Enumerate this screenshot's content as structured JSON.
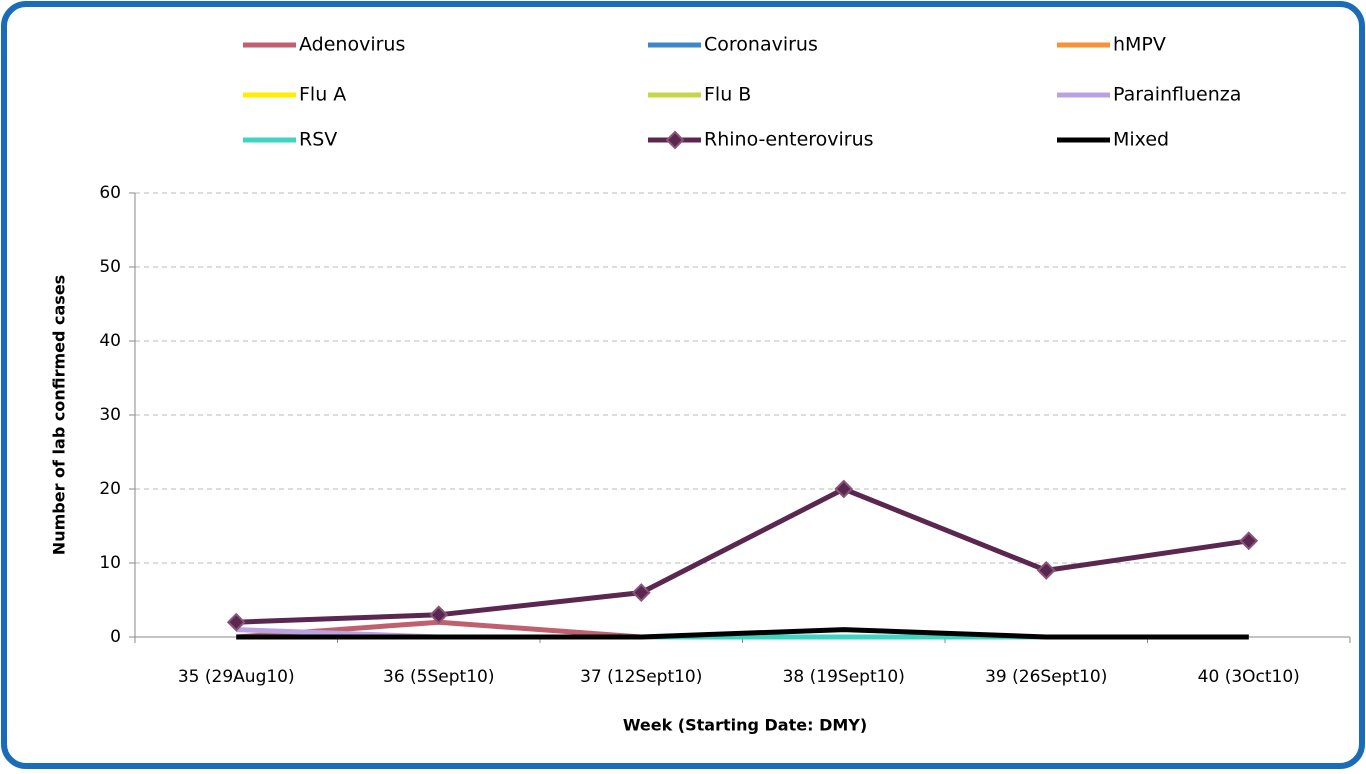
{
  "chart_data": {
    "type": "line",
    "x_label": "Week (Starting Date: DMY)",
    "y_label": "Number of lab confirmed cases",
    "categories": [
      "35 (29Aug10)",
      "36 (5Sept10)",
      "37 (12Sept10)",
      "38 (19Sept10)",
      "39 (26Sept10)",
      "40 (3Oct10)"
    ],
    "series": [
      {
        "name": "Adenovirus",
        "color": "#c0606e",
        "values": [
          0,
          2,
          0,
          0,
          0,
          0
        ]
      },
      {
        "name": "Coronavirus",
        "color": "#3f86c8",
        "values": [
          0,
          0,
          0,
          0,
          0,
          0
        ]
      },
      {
        "name": "hMPV",
        "color": "#f7923a",
        "values": [
          0,
          0,
          0,
          0,
          0,
          0
        ]
      },
      {
        "name": "Flu A",
        "color": "#ffee00",
        "values": [
          0,
          0,
          0,
          0,
          0,
          0
        ]
      },
      {
        "name": "Flu B",
        "color": "#c6d64a",
        "values": [
          0,
          0,
          0,
          0,
          0,
          0
        ]
      },
      {
        "name": "Parainfluenza",
        "color": "#b9a2e2",
        "values": [
          1,
          0,
          0,
          0,
          0,
          0
        ]
      },
      {
        "name": "RSV",
        "color": "#3fd4c2",
        "values": [
          0,
          0,
          0,
          0,
          0,
          0
        ]
      },
      {
        "name": "Rhino-enterovirus",
        "color": "#5a2750",
        "marker": "diamond",
        "marker_color": "#8a5478",
        "values": [
          2,
          3,
          6,
          20,
          9,
          13
        ]
      },
      {
        "name": "Mixed",
        "color": "#000000",
        "values": [
          0,
          0,
          0,
          1,
          0,
          0
        ]
      }
    ],
    "ylim": [
      0,
      60
    ],
    "yticks": [
      0,
      10,
      20,
      30,
      40,
      50,
      60
    ],
    "grid": true,
    "legend": "top"
  }
}
